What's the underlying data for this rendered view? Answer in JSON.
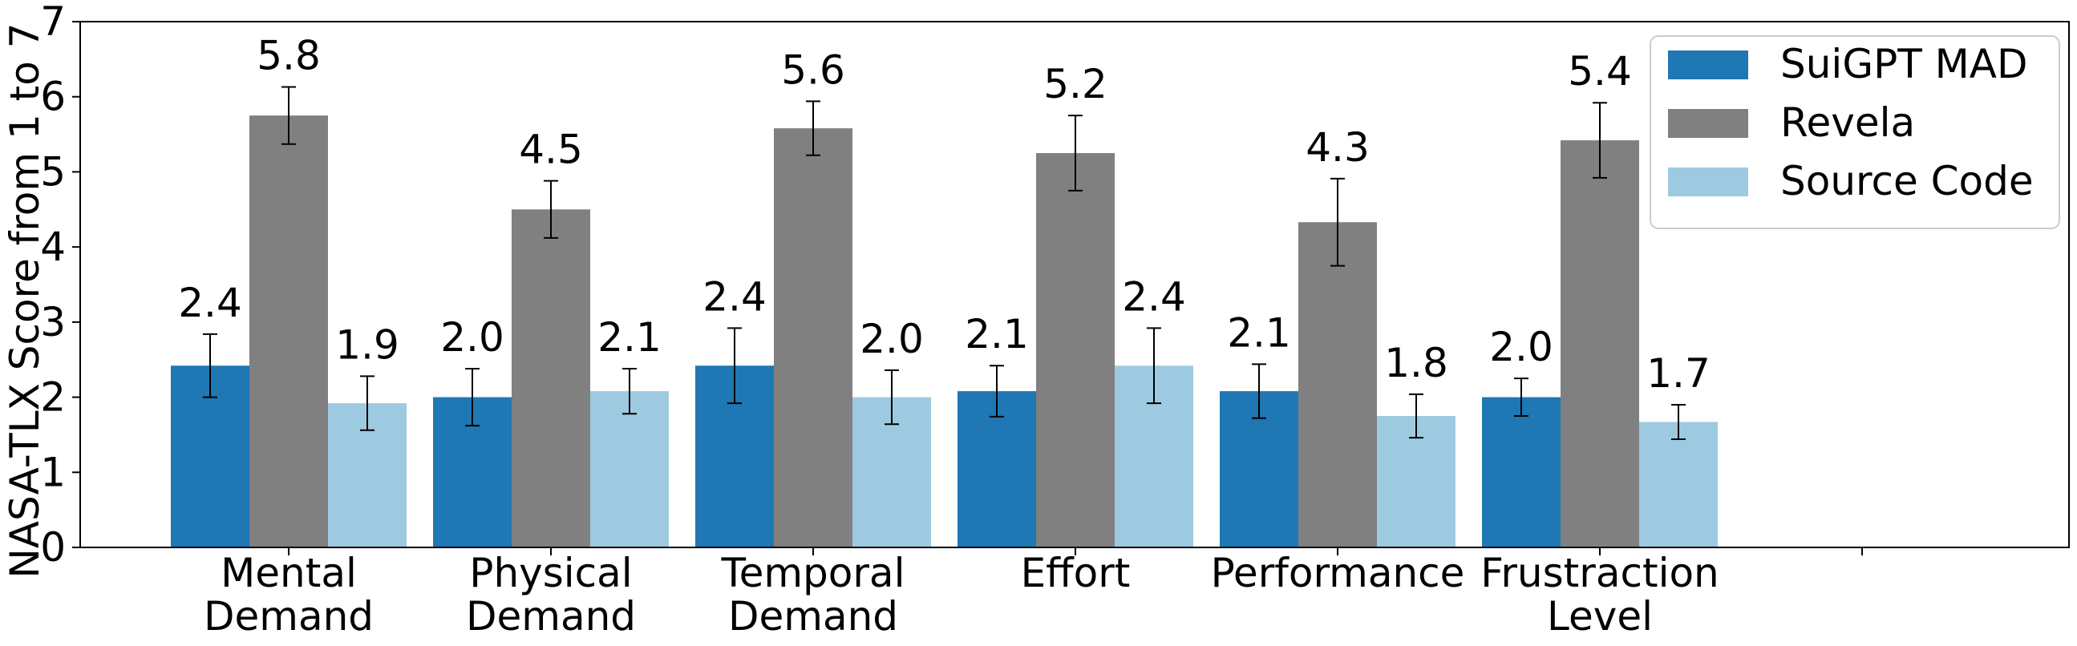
{
  "chart_data": {
    "type": "bar",
    "title": "",
    "xlabel": "",
    "ylabel": "NASA-TLX Score from 1 to 7",
    "ylim": [
      0,
      7
    ],
    "yticks": [
      0,
      1,
      2,
      3,
      4,
      5,
      6,
      7
    ],
    "categories": [
      [
        "Mental",
        "Demand"
      ],
      [
        "Physical",
        "Demand"
      ],
      [
        "Temporal",
        "Demand"
      ],
      [
        "Effort"
      ],
      [
        "Performance"
      ],
      [
        "Frustraction",
        "Level"
      ],
      [
        ""
      ]
    ],
    "legend_position": "top-right",
    "series": [
      {
        "name": "SuiGPT MAD",
        "color": "#1f77b4",
        "values": [
          2.42,
          2.0,
          2.42,
          2.08,
          2.08,
          2.0,
          0
        ],
        "errors": [
          0.42,
          0.38,
          0.5,
          0.34,
          0.36,
          0.25,
          0
        ],
        "labels": [
          "2.4",
          "2.0",
          "2.4",
          "2.1",
          "2.1",
          "2.0",
          ""
        ]
      },
      {
        "name": "Revela",
        "color": "#808080",
        "values": [
          5.75,
          4.5,
          5.58,
          5.25,
          4.33,
          5.42,
          0
        ],
        "errors": [
          0.38,
          0.38,
          0.36,
          0.5,
          0.58,
          0.5,
          0
        ],
        "labels": [
          "5.8",
          "4.5",
          "5.6",
          "5.2",
          "4.3",
          "5.4",
          ""
        ]
      },
      {
        "name": "Source Code",
        "color": "#9ecae1",
        "values": [
          1.92,
          2.08,
          2.0,
          2.42,
          1.75,
          1.67,
          0
        ],
        "errors": [
          0.36,
          0.3,
          0.36,
          0.5,
          0.29,
          0.23,
          0
        ],
        "labels": [
          "1.9",
          "2.1",
          "2.0",
          "2.4",
          "1.8",
          "1.7",
          ""
        ]
      }
    ]
  }
}
